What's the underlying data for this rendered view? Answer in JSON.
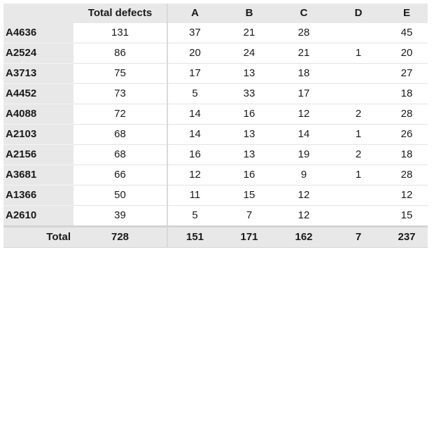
{
  "chart_data": {
    "type": "table",
    "title": "",
    "corner_label": "",
    "columns": [
      "Total defects",
      "A",
      "B",
      "C",
      "D",
      "E"
    ],
    "rows": [
      {
        "label": "A4636",
        "values": [
          "131",
          "37",
          "21",
          "28",
          "",
          "45"
        ]
      },
      {
        "label": "A2524",
        "values": [
          "86",
          "20",
          "24",
          "21",
          "1",
          "20"
        ]
      },
      {
        "label": "A3713",
        "values": [
          "75",
          "17",
          "13",
          "18",
          "",
          "27"
        ]
      },
      {
        "label": "A4452",
        "values": [
          "73",
          "5",
          "33",
          "17",
          "",
          "18"
        ]
      },
      {
        "label": "A4088",
        "values": [
          "72",
          "14",
          "16",
          "12",
          "2",
          "28"
        ]
      },
      {
        "label": "A2103",
        "values": [
          "68",
          "14",
          "13",
          "14",
          "1",
          "26"
        ]
      },
      {
        "label": "A2156",
        "values": [
          "68",
          "16",
          "13",
          "19",
          "2",
          "18"
        ]
      },
      {
        "label": "A3681",
        "values": [
          "66",
          "12",
          "16",
          "9",
          "1",
          "28"
        ]
      },
      {
        "label": "A1366",
        "values": [
          "50",
          "11",
          "15",
          "12",
          "",
          "12"
        ]
      },
      {
        "label": "A2610",
        "values": [
          "39",
          "5",
          "7",
          "12",
          "",
          "15"
        ]
      }
    ],
    "total_row": {
      "label": "Total",
      "values": [
        "728",
        "151",
        "171",
        "162",
        "7",
        "237"
      ]
    }
  }
}
